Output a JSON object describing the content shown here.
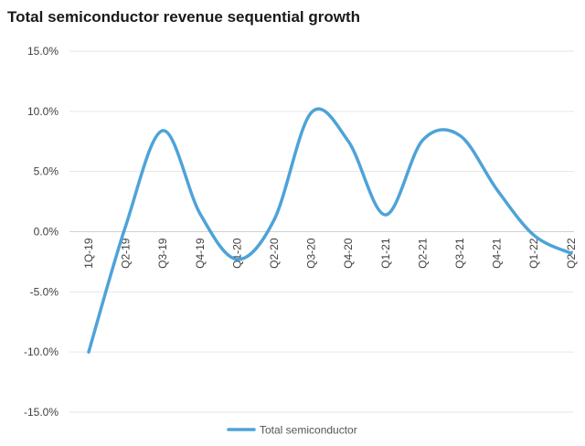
{
  "chart_data": {
    "type": "line",
    "title": "Total semiconductor  revenue sequential growth",
    "xlabel": "",
    "ylabel": "",
    "ylim": [
      -15,
      15
    ],
    "yticks": [
      15,
      10,
      5,
      0,
      -5,
      -10,
      -15
    ],
    "ytick_labels": [
      "15.0%",
      "10.0%",
      "5.0%",
      "0.0%",
      "-5.0%",
      "-10.0%",
      "-15.0%"
    ],
    "grid": true,
    "legend_position": "bottom-center",
    "categories": [
      "1Q-19",
      "Q2-19",
      "Q3-19",
      "Q4-19",
      "Q1-20",
      "Q2-20",
      "Q3-20",
      "Q4-20",
      "Q1-21",
      "Q2-21",
      "Q3-21",
      "Q4-21",
      "Q1-22",
      "Q2-22"
    ],
    "series": [
      {
        "name": "Total semiconductor",
        "color": "#4ea3d8",
        "values": [
          -10.0,
          0.5,
          8.4,
          1.5,
          -2.3,
          1.0,
          9.9,
          7.5,
          1.4,
          7.6,
          8.0,
          3.5,
          -0.3,
          -1.8
        ],
        "smooth": true
      }
    ]
  }
}
